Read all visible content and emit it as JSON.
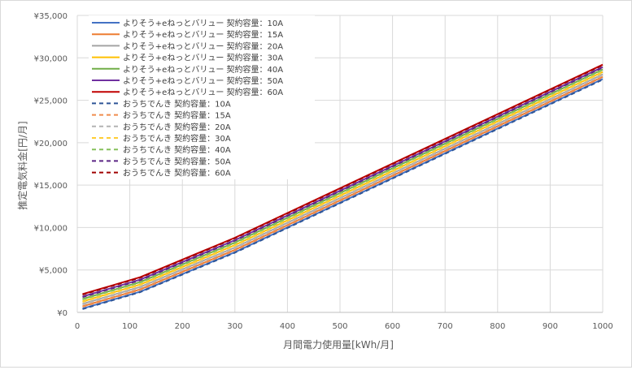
{
  "chart_data": {
    "type": "line",
    "title": "",
    "xlabel": "月間電力使用量[kWh/月]",
    "ylabel": "推定電気料金[円/月]",
    "xlim": [
      0,
      1000
    ],
    "ylim": [
      0,
      35000
    ],
    "x_ticks": [
      0,
      100,
      200,
      300,
      400,
      500,
      600,
      700,
      800,
      900,
      1000
    ],
    "y_ticks": [
      0,
      5000,
      10000,
      15000,
      20000,
      25000,
      30000,
      35000
    ],
    "x_tick_labels": [
      "0",
      "100",
      "200",
      "300",
      "400",
      "500",
      "600",
      "700",
      "800",
      "900",
      "1000"
    ],
    "y_tick_labels": [
      "¥0",
      "¥5,000",
      "¥10,000",
      "¥15,000",
      "¥20,000",
      "¥25,000",
      "¥30,000",
      "¥35,000"
    ],
    "grid": true,
    "legend_position": "top-left",
    "x": [
      10,
      120,
      300,
      1000
    ],
    "series": [
      {
        "name": "よりそう+eねっとバリュー 契約容量：10A",
        "color": "#4472c4",
        "dash": false,
        "values": [
          450,
          2450,
          7100,
          27500
        ]
      },
      {
        "name": "よりそう+eねっとバリュー 契約容量：15A",
        "color": "#ed7d31",
        "dash": false,
        "values": [
          720,
          2720,
          7370,
          27770
        ]
      },
      {
        "name": "よりそう+eねっとバリュー 契約容量：20A",
        "color": "#a5a5a5",
        "dash": false,
        "values": [
          1000,
          3000,
          7650,
          28050
        ]
      },
      {
        "name": "よりそう+eねっとバリュー 契約容量：30A",
        "color": "#ffc000",
        "dash": false,
        "values": [
          1290,
          3290,
          7940,
          28340
        ]
      },
      {
        "name": "よりそう+eねっとバリュー 契約容量：40A",
        "color": "#70ad47",
        "dash": false,
        "values": [
          1580,
          3580,
          8230,
          28630
        ]
      },
      {
        "name": "よりそう+eねっとバリュー 契約容量：50A",
        "color": "#7030a0",
        "dash": false,
        "values": [
          1860,
          3860,
          8510,
          28910
        ]
      },
      {
        "name": "よりそう+eねっとバリュー 契約容量：60A",
        "color": "#c00000",
        "dash": false,
        "values": [
          2150,
          4150,
          8800,
          29200
        ]
      },
      {
        "name": "おうちでんき 契約容量：10A",
        "color": "#2e5597",
        "dash": true,
        "values": [
          390,
          2390,
          7040,
          27440
        ]
      },
      {
        "name": "おうちでんき 契約容量：15A",
        "color": "#f08c4d",
        "dash": true,
        "values": [
          660,
          2660,
          7310,
          27710
        ]
      },
      {
        "name": "おうちでんき 契約容量：20A",
        "color": "#b3b3b3",
        "dash": true,
        "values": [
          940,
          2940,
          7590,
          27990
        ]
      },
      {
        "name": "おうちでんき 契約容量：30A",
        "color": "#ffcd33",
        "dash": true,
        "values": [
          1230,
          3230,
          7880,
          28280
        ]
      },
      {
        "name": "おうちでんき 契約容量：40A",
        "color": "#86c05b",
        "dash": true,
        "values": [
          1520,
          3520,
          8170,
          28570
        ]
      },
      {
        "name": "おうちでんき 契約容量：50A",
        "color": "#5b2585",
        "dash": true,
        "values": [
          1800,
          3800,
          8450,
          28850
        ]
      },
      {
        "name": "おうちでんき 契約容量：60A",
        "color": "#a00000",
        "dash": true,
        "values": [
          2090,
          4090,
          8740,
          29140
        ]
      }
    ]
  }
}
